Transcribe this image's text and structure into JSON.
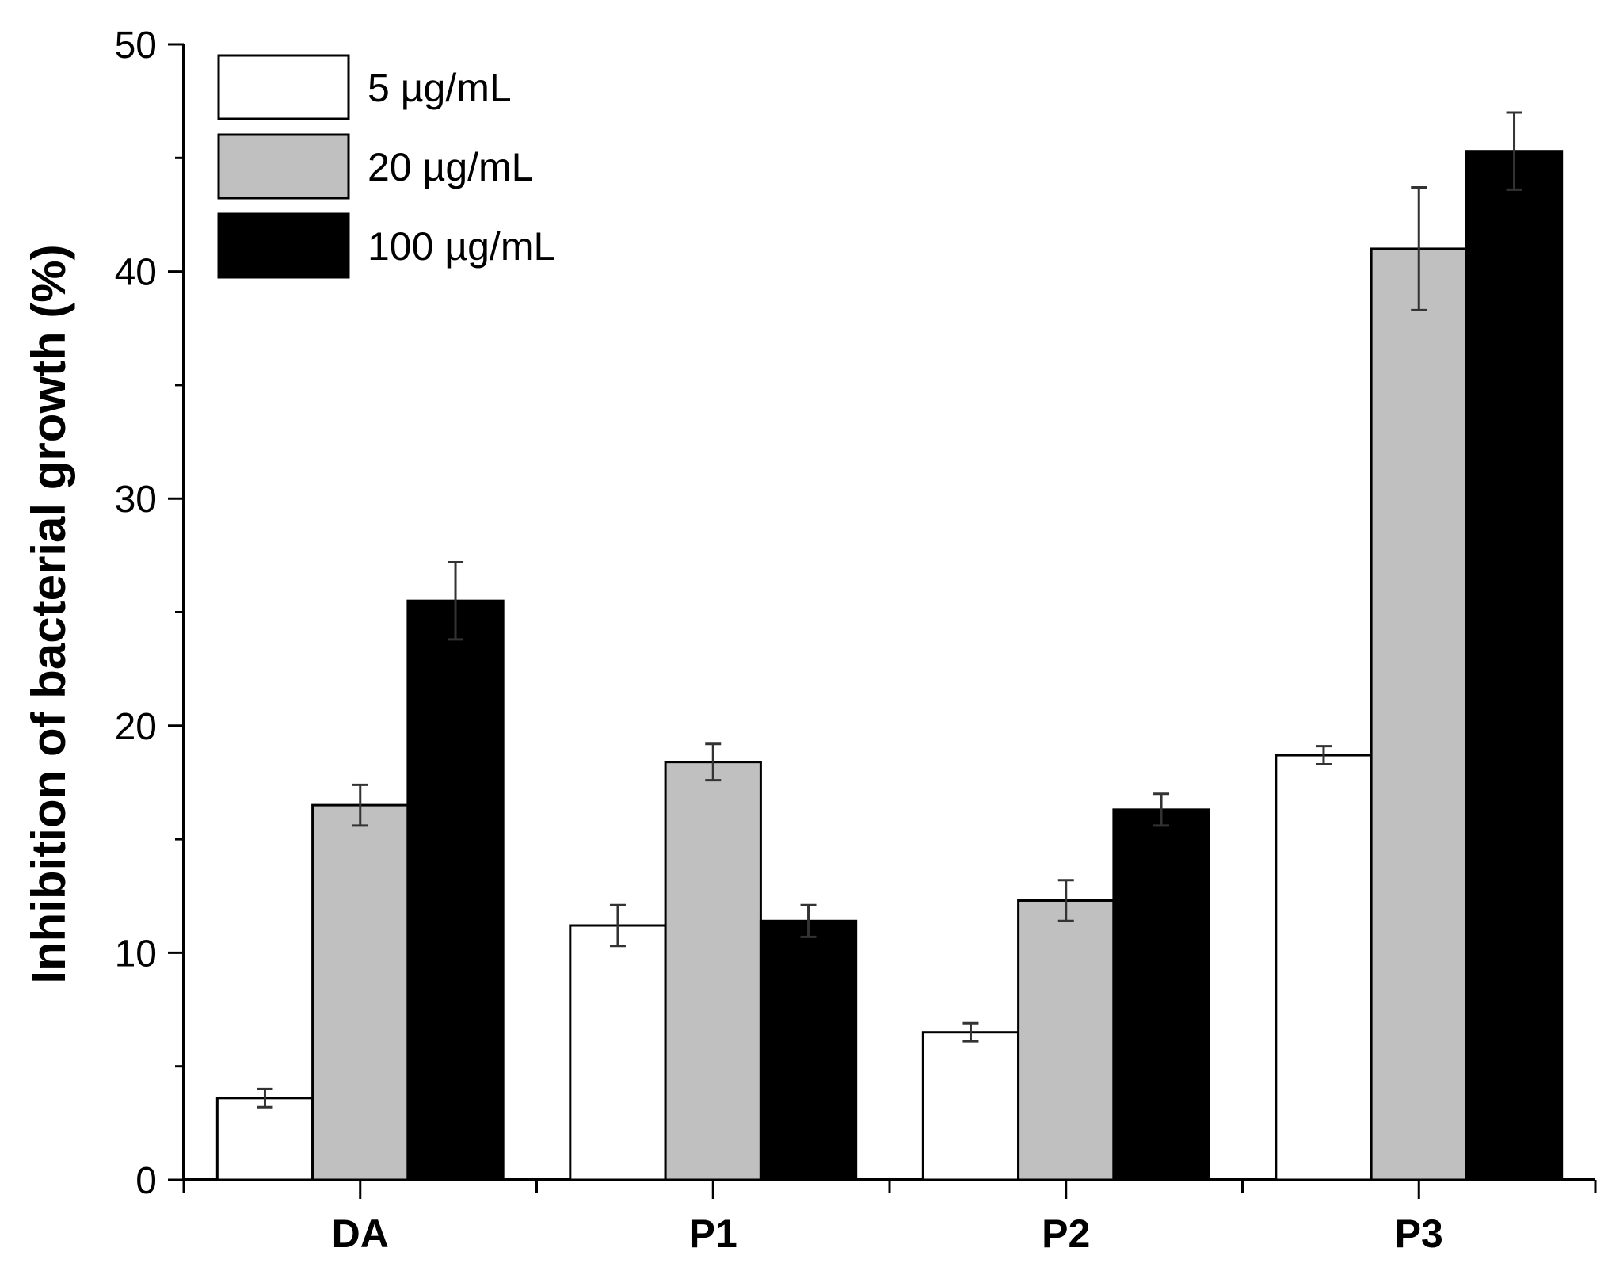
{
  "chart_data": {
    "type": "bar",
    "title": "",
    "xlabel": "",
    "ylabel": "Inhibition of bacterial growth (%)",
    "ylim": [
      0,
      50
    ],
    "yticks": [
      0,
      10,
      20,
      30,
      40,
      50
    ],
    "categories": [
      "DA",
      "P1",
      "P2",
      "P3"
    ],
    "legend_position": "top-left",
    "series": [
      {
        "name": "5 µg/mL",
        "color": "#ffffff",
        "values": [
          3.6,
          11.2,
          6.5,
          18.7
        ],
        "errors": [
          0.4,
          0.9,
          0.4,
          0.4
        ]
      },
      {
        "name": "20 µg/mL",
        "color": "#c0c0c0",
        "values": [
          16.5,
          18.4,
          12.3,
          41.0
        ],
        "errors": [
          0.9,
          0.8,
          0.9,
          2.7
        ]
      },
      {
        "name": "100 µg/mL",
        "color": "#000000",
        "values": [
          25.5,
          11.4,
          16.3,
          45.3
        ],
        "errors": [
          1.7,
          0.7,
          0.7,
          1.7
        ]
      }
    ]
  }
}
